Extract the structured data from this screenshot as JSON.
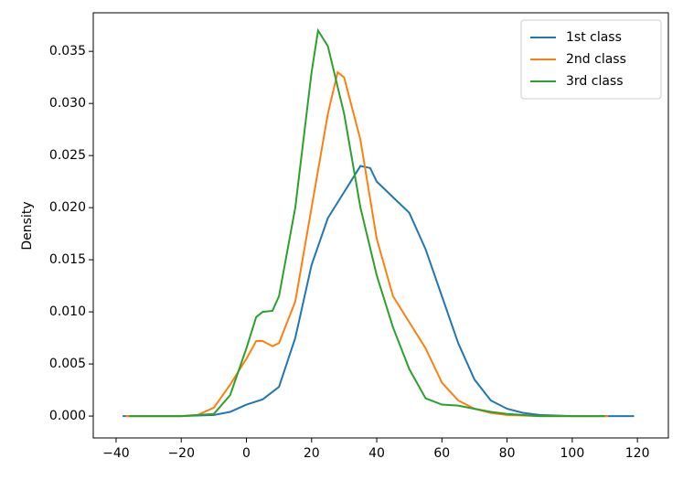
{
  "chart_data": {
    "type": "line",
    "ylabel": "Density",
    "xlim": [
      -47,
      129.5
    ],
    "ylim": [
      -0.0021,
      0.0387
    ],
    "xticks": [
      {
        "value": -40,
        "label": "−40"
      },
      {
        "value": -20,
        "label": "−20"
      },
      0,
      20,
      40,
      60,
      80,
      100,
      120
    ],
    "yticks": [
      {
        "value": 0,
        "label": "0.000"
      },
      {
        "value": 0.005,
        "label": "0.005"
      },
      {
        "value": 0.01,
        "label": "0.010"
      },
      {
        "value": 0.015,
        "label": "0.015"
      },
      {
        "value": 0.02,
        "label": "0.020"
      },
      {
        "value": 0.025,
        "label": "0.025"
      },
      {
        "value": 0.03,
        "label": "0.030"
      },
      {
        "value": 0.035,
        "label": "0.035"
      }
    ],
    "legend": "upper right",
    "series": [
      {
        "name": "1st class",
        "color": "#1f77b4",
        "x": [
          -38,
          -20,
          -10,
          -5,
          0,
          5,
          10,
          15,
          20,
          25,
          30,
          35,
          38,
          40,
          45,
          50,
          55,
          60,
          65,
          70,
          75,
          80,
          85,
          90,
          100,
          119
        ],
        "values": [
          0,
          0,
          0.0001,
          0.0004,
          0.0011,
          0.0016,
          0.0028,
          0.0075,
          0.0145,
          0.019,
          0.0215,
          0.024,
          0.0238,
          0.0225,
          0.021,
          0.0195,
          0.016,
          0.0115,
          0.007,
          0.0035,
          0.0015,
          0.0007,
          0.0003,
          0.0001,
          0,
          0
        ]
      },
      {
        "name": "2nd class",
        "color": "#ff7f0e",
        "x": [
          -37,
          -20,
          -15,
          -10,
          -5,
          0,
          3,
          5,
          8,
          10,
          15,
          20,
          25,
          28,
          30,
          35,
          40,
          45,
          50,
          55,
          60,
          65,
          70,
          75,
          80,
          90,
          111
        ],
        "values": [
          0,
          0,
          0.0001,
          0.0008,
          0.003,
          0.0055,
          0.0072,
          0.0072,
          0.0067,
          0.007,
          0.011,
          0.02,
          0.029,
          0.033,
          0.0325,
          0.0265,
          0.017,
          0.0115,
          0.009,
          0.0065,
          0.0032,
          0.0015,
          0.0007,
          0.0003,
          0.0001,
          0,
          0
        ]
      },
      {
        "name": "3rd class",
        "color": "#2ca02c",
        "x": [
          -36,
          -20,
          -10,
          -5,
          0,
          3,
          5,
          8,
          10,
          15,
          20,
          22,
          25,
          30,
          35,
          40,
          45,
          50,
          55,
          60,
          65,
          70,
          75,
          80,
          90,
          110
        ],
        "values": [
          0,
          0,
          0.0002,
          0.002,
          0.0065,
          0.0095,
          0.01,
          0.0101,
          0.0115,
          0.02,
          0.033,
          0.037,
          0.0355,
          0.029,
          0.02,
          0.0135,
          0.0085,
          0.0045,
          0.0017,
          0.0011,
          0.001,
          0.0007,
          0.0004,
          0.0002,
          0,
          0
        ]
      }
    ]
  }
}
